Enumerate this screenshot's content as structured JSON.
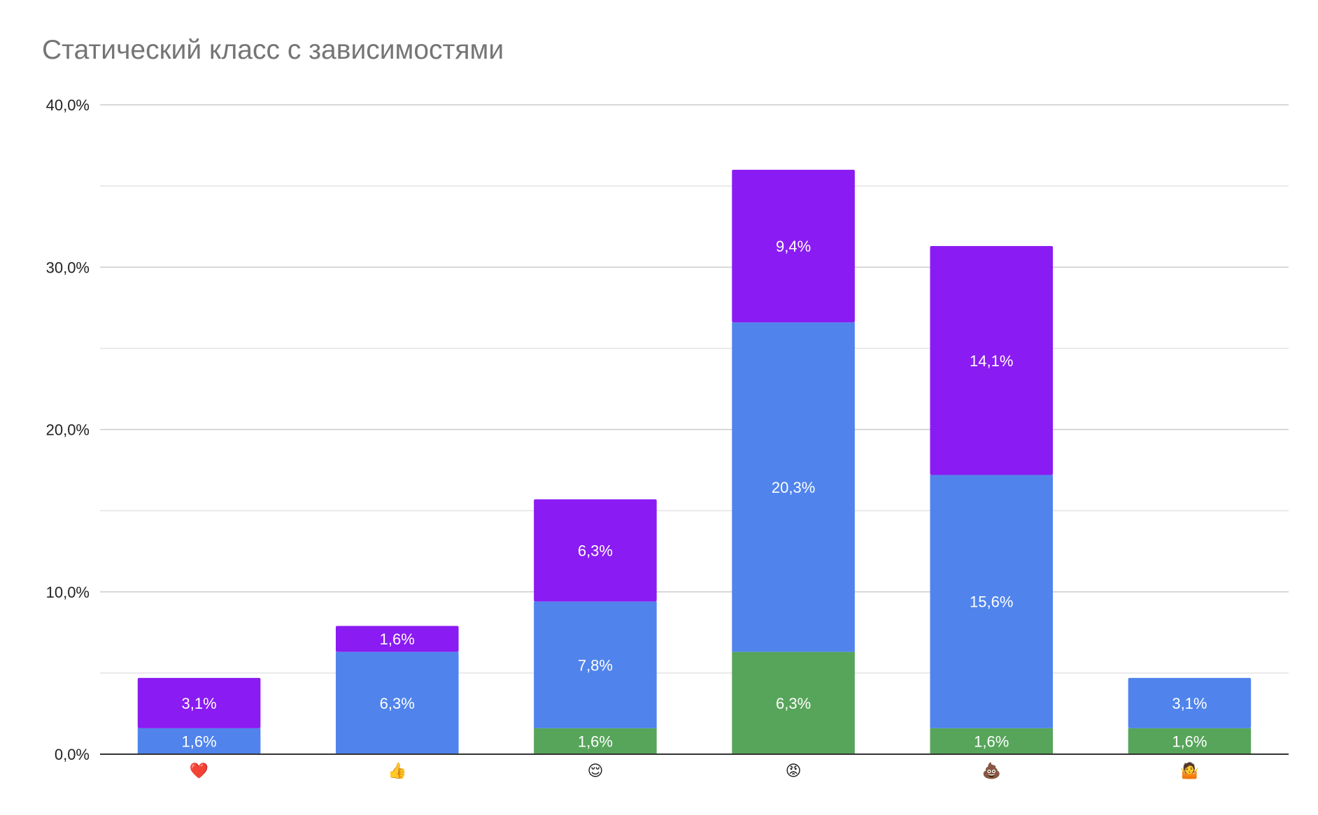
{
  "chart_data": {
    "type": "bar",
    "stacked": true,
    "title": "Статический класс с зависимостями",
    "xlabel": "",
    "ylabel": "",
    "ylim": [
      0,
      40
    ],
    "y_ticks": [
      "0,0%",
      "10,0%",
      "20,0%",
      "30,0%",
      "40,0%"
    ],
    "grid": true,
    "legend": "none",
    "categories": [
      "❤️",
      "👍",
      "😌",
      "😡",
      "💩",
      "🤷"
    ],
    "series": [
      {
        "color": "#57a55a",
        "values": [
          null,
          null,
          1.6,
          6.3,
          1.6,
          1.6
        ],
        "labels": [
          "",
          "",
          "1,6%",
          "6,3%",
          "1,6%",
          "1,6%"
        ]
      },
      {
        "color": "#5084ec",
        "values": [
          1.6,
          6.3,
          7.8,
          20.3,
          15.6,
          3.1
        ],
        "labels": [
          "1,6%",
          "6,3%",
          "7,8%",
          "20,3%",
          "15,6%",
          "3,1%"
        ]
      },
      {
        "color": "#8a1bf2",
        "values": [
          3.1,
          1.6,
          6.3,
          9.4,
          14.1,
          null
        ],
        "labels": [
          "3,1%",
          "1,6%",
          "6,3%",
          "9,4%",
          "14,1%",
          ""
        ]
      }
    ]
  }
}
